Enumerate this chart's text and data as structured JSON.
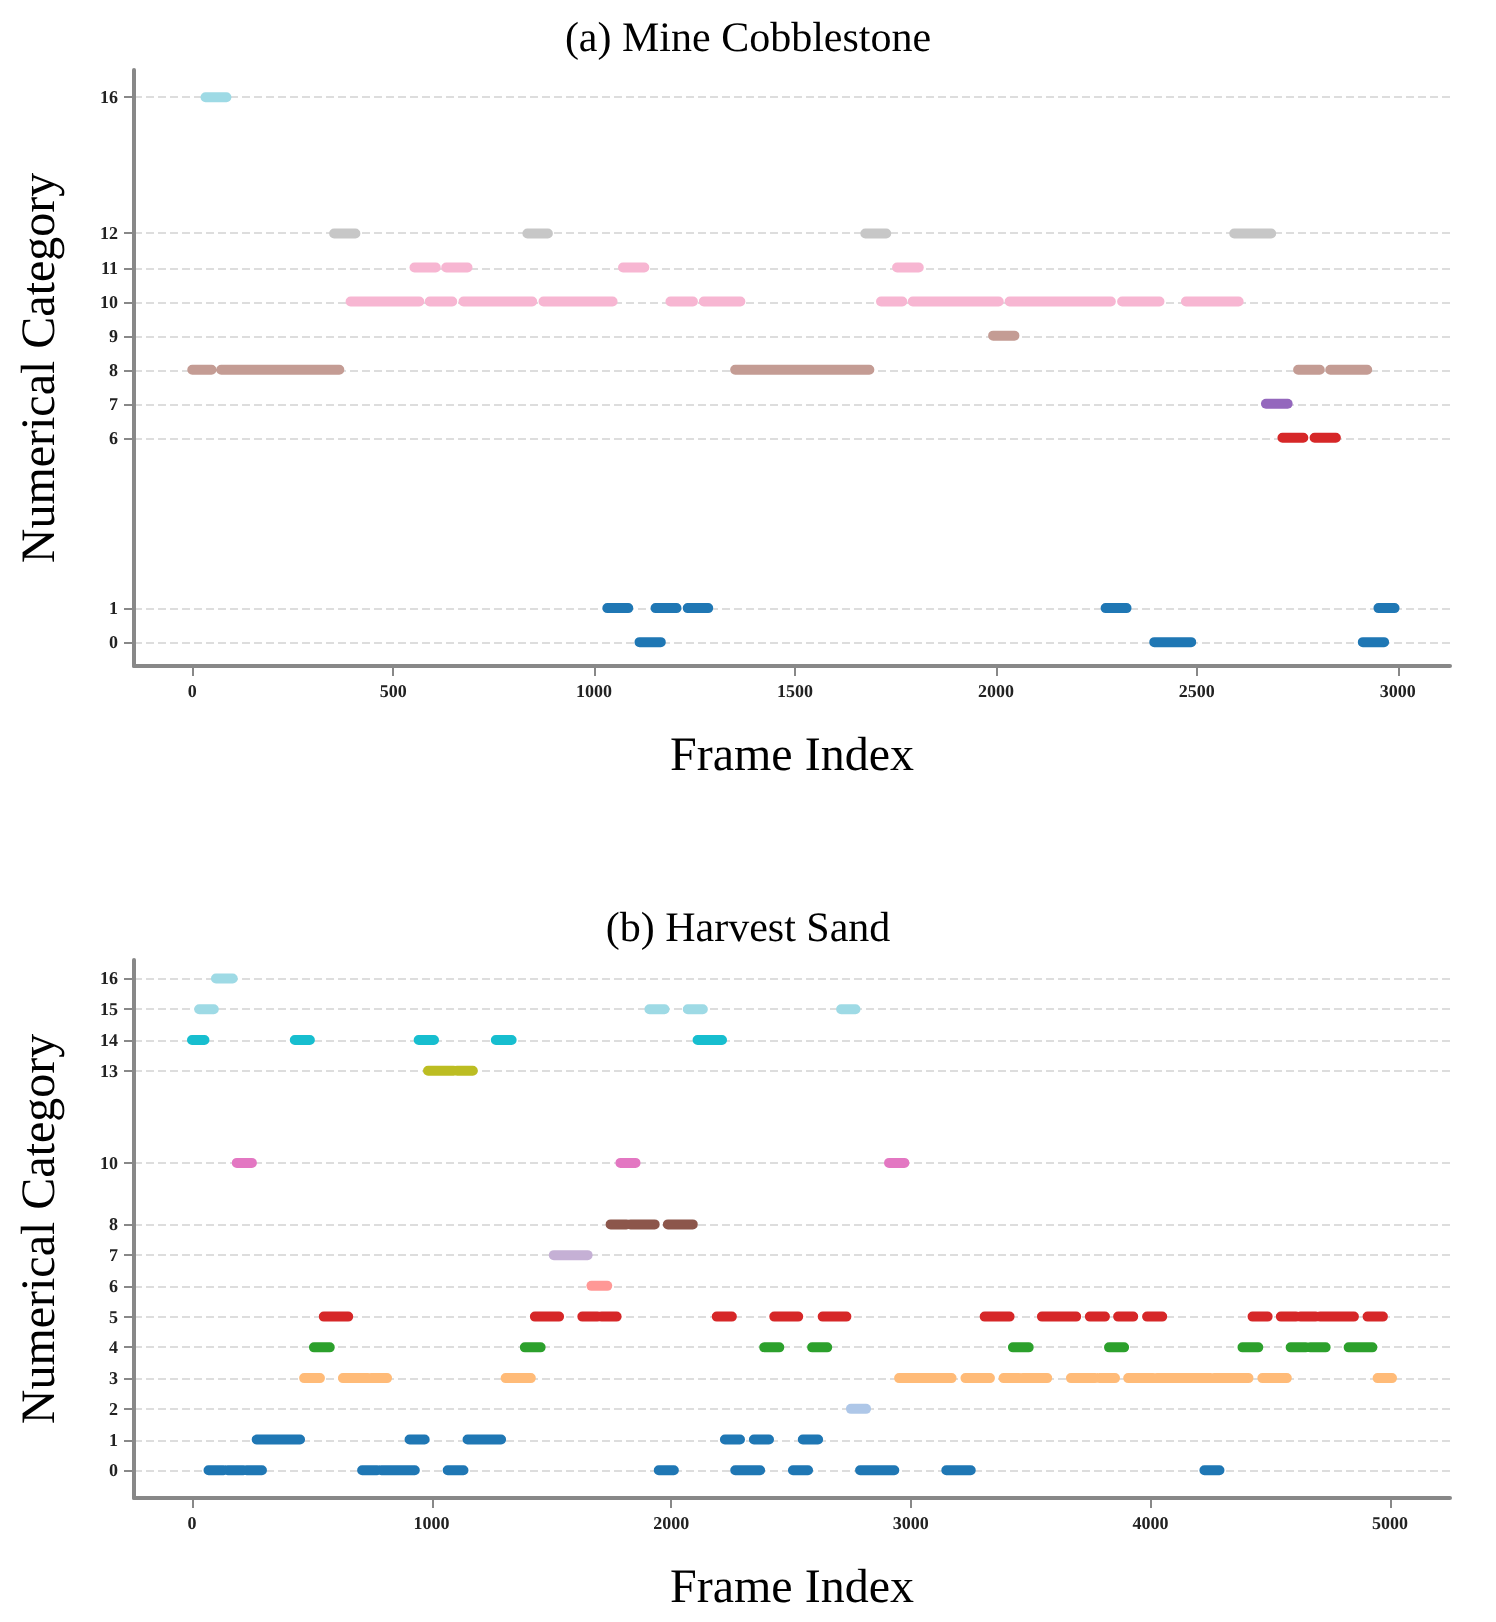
{
  "chart_data": [
    {
      "type": "line",
      "title": "(a) Mine Cobblestone",
      "xlabel": "Frame Index",
      "ylabel": "Numerical Category",
      "xlim": [
        -145,
        3130
      ],
      "xticks": [
        0,
        500,
        1000,
        1500,
        2000,
        2500,
        3000
      ],
      "ylim": [
        -0.7,
        16.8
      ],
      "yticks": [
        0,
        1,
        6,
        7,
        8,
        9,
        10,
        11,
        12,
        16
      ],
      "grid": "y",
      "marker": "none",
      "series": [
        {
          "color": "#9edae5",
          "x": [
            33,
            85
          ],
          "values": [
            16,
            16
          ]
        },
        {
          "color": "#c7c7c7",
          "x": [
            353,
            406,
            null,
            834,
            885,
            null,
            1675,
            1727,
            null,
            2593,
            2685
          ],
          "values": [
            12,
            12,
            null,
            12,
            12,
            null,
            12,
            12,
            null,
            12,
            12
          ]
        },
        {
          "color": "#f7b6d2",
          "x": [
            553,
            606,
            null,
            632,
            685,
            null,
            1072,
            1125,
            null,
            1754,
            1808
          ],
          "values": [
            11,
            11,
            null,
            11,
            11,
            null,
            11,
            11,
            null,
            11,
            11
          ]
        },
        {
          "color": "#f7b6d2",
          "x": [
            394,
            565,
            null,
            591,
            647,
            null,
            675,
            846,
            null,
            874,
            1046,
            null,
            1190,
            1246,
            null,
            1273,
            1364,
            null,
            1714,
            1767,
            null,
            1793,
            2007,
            null,
            2034,
            2286,
            null,
            2314,
            2407,
            null,
            2473,
            2604
          ],
          "values": [
            10,
            10,
            null,
            10,
            10,
            null,
            10,
            10,
            null,
            10,
            10,
            null,
            10,
            10,
            null,
            10,
            10,
            null,
            10,
            10,
            null,
            10,
            10,
            null,
            10,
            10,
            null,
            10,
            10,
            null,
            10,
            10
          ]
        },
        {
          "color": "#c49c94",
          "x": [
            1993,
            2046
          ],
          "values": [
            9,
            9
          ]
        },
        {
          "color": "#c49c94",
          "x": [
            0,
            48,
            null,
            72,
            366,
            null,
            1351,
            1685,
            null,
            2752,
            2806,
            null,
            2832,
            2924
          ],
          "values": [
            8,
            8,
            null,
            8,
            8,
            null,
            8,
            8,
            null,
            8,
            8,
            null,
            8,
            8
          ]
        },
        {
          "color": "#9467bd",
          "x": [
            2672,
            2726
          ],
          "values": [
            7,
            7
          ]
        },
        {
          "color": "#d62728",
          "x": [
            2713,
            2765,
            null,
            2793,
            2846
          ],
          "values": [
            6,
            6,
            null,
            6,
            6
          ]
        },
        {
          "color": "#1f77b4",
          "x": [
            1033,
            1085,
            null,
            1153,
            1205,
            null,
            1233,
            1284,
            null,
            2273,
            2325,
            null,
            2952,
            2992
          ],
          "values": [
            1,
            1,
            null,
            1,
            1,
            null,
            1,
            1,
            null,
            1,
            1,
            null,
            1,
            1
          ]
        },
        {
          "color": "#1f77b4",
          "x": [
            1113,
            1166,
            null,
            2394,
            2486,
            null,
            2913,
            2966
          ],
          "values": [
            0,
            0,
            null,
            0,
            0,
            null,
            0,
            0
          ]
        }
      ]
    },
    {
      "type": "line",
      "title": "(b) Harvest Sand",
      "xlabel": "Frame Index",
      "ylabel": "Numerical Category",
      "xlim": [
        -242,
        5250
      ],
      "xticks": [
        0,
        1000,
        2000,
        3000,
        4000,
        5000
      ],
      "ylim": [
        -0.9,
        16.6
      ],
      "yticks": [
        0,
        1,
        2,
        3,
        4,
        5,
        6,
        7,
        8,
        10,
        13,
        14,
        15,
        16
      ],
      "grid": "y",
      "marker": "none",
      "series": [
        {
          "color": "#9edae5",
          "x": [
            100,
            170
          ],
          "values": [
            16,
            16
          ]
        },
        {
          "color": "#9edae5",
          "x": [
            30,
            91,
            null,
            1909,
            1972,
            null,
            2069,
            2132,
            null,
            2709,
            2769
          ],
          "values": [
            15,
            15,
            null,
            15,
            15,
            null,
            15,
            15,
            null,
            15,
            15
          ]
        },
        {
          "color": "#17becf",
          "x": [
            0,
            52,
            null,
            429,
            492,
            null,
            946,
            1010,
            null,
            1268,
            1334,
            null,
            2110,
            2212
          ],
          "values": [
            14,
            14,
            null,
            14,
            14,
            null,
            14,
            14,
            null,
            14,
            14,
            null,
            14,
            14
          ]
        },
        {
          "color": "#bcbd22",
          "x": [
            985,
            1092,
            null,
            1106,
            1172
          ],
          "values": [
            13,
            13,
            null,
            13,
            13
          ]
        },
        {
          "color": "#e377c2",
          "x": [
            187,
            250,
            null,
            1788,
            1851,
            null,
            2909,
            2973
          ],
          "values": [
            10,
            10,
            null,
            10,
            10,
            null,
            10,
            10
          ]
        },
        {
          "color": "#8c564b",
          "x": [
            1747,
            1813,
            null,
            1830,
            1931,
            null,
            1986,
            2090
          ],
          "values": [
            8,
            8,
            null,
            8,
            8,
            null,
            8,
            8
          ]
        },
        {
          "color": "#c5b0d5",
          "x": [
            1510,
            1651
          ],
          "values": [
            7,
            7
          ]
        },
        {
          "color": "#ff9896",
          "x": [
            1667,
            1733
          ],
          "values": [
            6,
            6
          ]
        },
        {
          "color": "#d62728",
          "x": [
            550,
            652,
            null,
            1431,
            1532,
            null,
            1629,
            1692,
            null,
            1709,
            1772,
            null,
            2190,
            2253,
            null,
            2430,
            2530,
            null,
            2632,
            2731,
            null,
            3308,
            3412,
            null,
            3547,
            3690,
            null,
            3747,
            3810,
            null,
            3865,
            3928,
            null,
            3986,
            4049,
            null,
            4426,
            4489,
            null,
            4544,
            4607,
            null,
            4626,
            4689,
            null,
            4708,
            4849,
            null,
            4906,
            4970
          ],
          "values": [
            5,
            5,
            null,
            5,
            5,
            null,
            5,
            5,
            null,
            5,
            5,
            null,
            5,
            5,
            null,
            5,
            5,
            null,
            5,
            5,
            null,
            5,
            5,
            null,
            5,
            5,
            null,
            5,
            5,
            null,
            5,
            5,
            null,
            5,
            5,
            null,
            5,
            5,
            null,
            5,
            5,
            null,
            5,
            5,
            null,
            5,
            5,
            null,
            5,
            5
          ]
        },
        {
          "color": "#2ca02c",
          "x": [
            509,
            575,
            null,
            1389,
            1455,
            null,
            2388,
            2451,
            null,
            2588,
            2651,
            null,
            3426,
            3492,
            null,
            3827,
            3890,
            null,
            4384,
            4450,
            null,
            4585,
            4648,
            null,
            4667,
            4731,
            null,
            4827,
            4926
          ],
          "values": [
            4,
            4,
            null,
            4,
            4,
            null,
            4,
            4,
            null,
            4,
            4,
            null,
            4,
            4,
            null,
            4,
            4,
            null,
            4,
            4,
            null,
            4,
            4,
            null,
            4,
            4,
            null,
            4,
            4
          ]
        },
        {
          "color": "#ffbb78",
          "x": [
            468,
            534,
            null,
            630,
            734,
            null,
            748,
            814,
            null,
            1309,
            1414,
            null,
            2951,
            3170,
            null,
            3228,
            3330,
            null,
            3387,
            3451,
            null,
            3467,
            3569,
            null,
            3668,
            3769,
            null,
            3788,
            3852,
            null,
            3907,
            4011,
            null,
            4027,
            4250,
            null,
            4266,
            4409,
            null,
            4467,
            4569,
            null,
            4948,
            5008
          ],
          "values": [
            3,
            3,
            null,
            3,
            3,
            null,
            3,
            3,
            null,
            3,
            3,
            null,
            3,
            3,
            null,
            3,
            3,
            null,
            3,
            3,
            null,
            3,
            3,
            null,
            3,
            3,
            null,
            3,
            3,
            null,
            3,
            3,
            null,
            3,
            3,
            null,
            3,
            3,
            null,
            3,
            3,
            null,
            3,
            3
          ]
        },
        {
          "color": "#aec7e8",
          "x": [
            2750,
            2813
          ],
          "values": [
            2,
            2
          ]
        },
        {
          "color": "#1f77b4",
          "x": [
            270,
            451,
            null,
            908,
            971,
            null,
            1150,
            1290,
            null,
            2224,
            2287,
            null,
            2345,
            2408,
            null,
            2549,
            2613
          ],
          "values": [
            1,
            1,
            null,
            1,
            1,
            null,
            1,
            1,
            null,
            1,
            1,
            null,
            1,
            1,
            null,
            1,
            1
          ]
        },
        {
          "color": "#1f77b4",
          "x": [
            69,
            132,
            null,
            149,
            215,
            null,
            228,
            292,
            null,
            710,
            773,
            null,
            790,
            930,
            null,
            1067,
            1133,
            null,
            1948,
            2011,
            null,
            2267,
            2371,
            null,
            2508,
            2571,
            null,
            2788,
            2931,
            null,
            3148,
            3250,
            null,
            4225,
            4288
          ],
          "values": [
            0,
            0,
            null,
            0,
            0,
            null,
            0,
            0,
            null,
            0,
            0,
            null,
            0,
            0,
            null,
            0,
            0,
            null,
            0,
            0,
            null,
            0,
            0,
            null,
            0,
            0,
            null,
            0,
            0,
            null,
            0,
            0,
            null,
            0,
            0
          ]
        }
      ]
    }
  ]
}
